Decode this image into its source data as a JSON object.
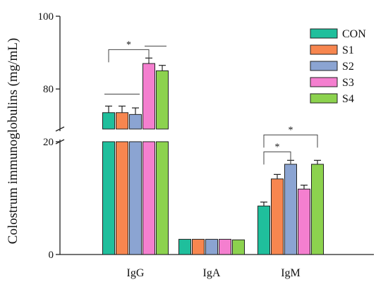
{
  "chart_data": {
    "type": "bar",
    "ylabel": "Colostrum immunoglobulins (mg/mL)",
    "categories": [
      "IgG",
      "IgA",
      "IgM"
    ],
    "series": [
      {
        "name": "CON",
        "color": "#1fbf9c",
        "values": [
          73.5,
          2.7,
          8.6
        ],
        "errors": [
          1.8,
          0,
          0.7
        ]
      },
      {
        "name": "S1",
        "color": "#f7864f",
        "values": [
          73.5,
          2.7,
          13.4
        ],
        "errors": [
          1.8,
          0,
          0.8
        ]
      },
      {
        "name": "S2",
        "color": "#8ba4d2",
        "values": [
          73.0,
          2.7,
          16.0
        ],
        "errors": [
          1.8,
          0,
          0.7
        ]
      },
      {
        "name": "S3",
        "color": "#f47fcf",
        "values": [
          87.0,
          2.7,
          11.6
        ],
        "errors": [
          1.5,
          0,
          0.7
        ]
      },
      {
        "name": "S4",
        "color": "#8cd24e",
        "values": [
          85.0,
          2.6,
          16.0
        ],
        "errors": [
          1.5,
          0,
          0.7
        ]
      }
    ],
    "axis": {
      "broken": true,
      "lower_segment": [
        0,
        20
      ],
      "upper_segment": [
        69,
        100
      ],
      "lower_ticks": [
        0,
        20
      ],
      "upper_ticks": [
        80,
        100
      ]
    },
    "significance": [
      {
        "category": "IgG",
        "from_series": 0,
        "to_series": 3,
        "label": "*"
      },
      {
        "category": "IgM",
        "from_series": 0,
        "to_series": 2,
        "label": "*"
      },
      {
        "category": "IgM",
        "from_series": 0,
        "to_series": 4,
        "label": "*"
      }
    ],
    "legend_position": "top-right",
    "grid": false
  }
}
